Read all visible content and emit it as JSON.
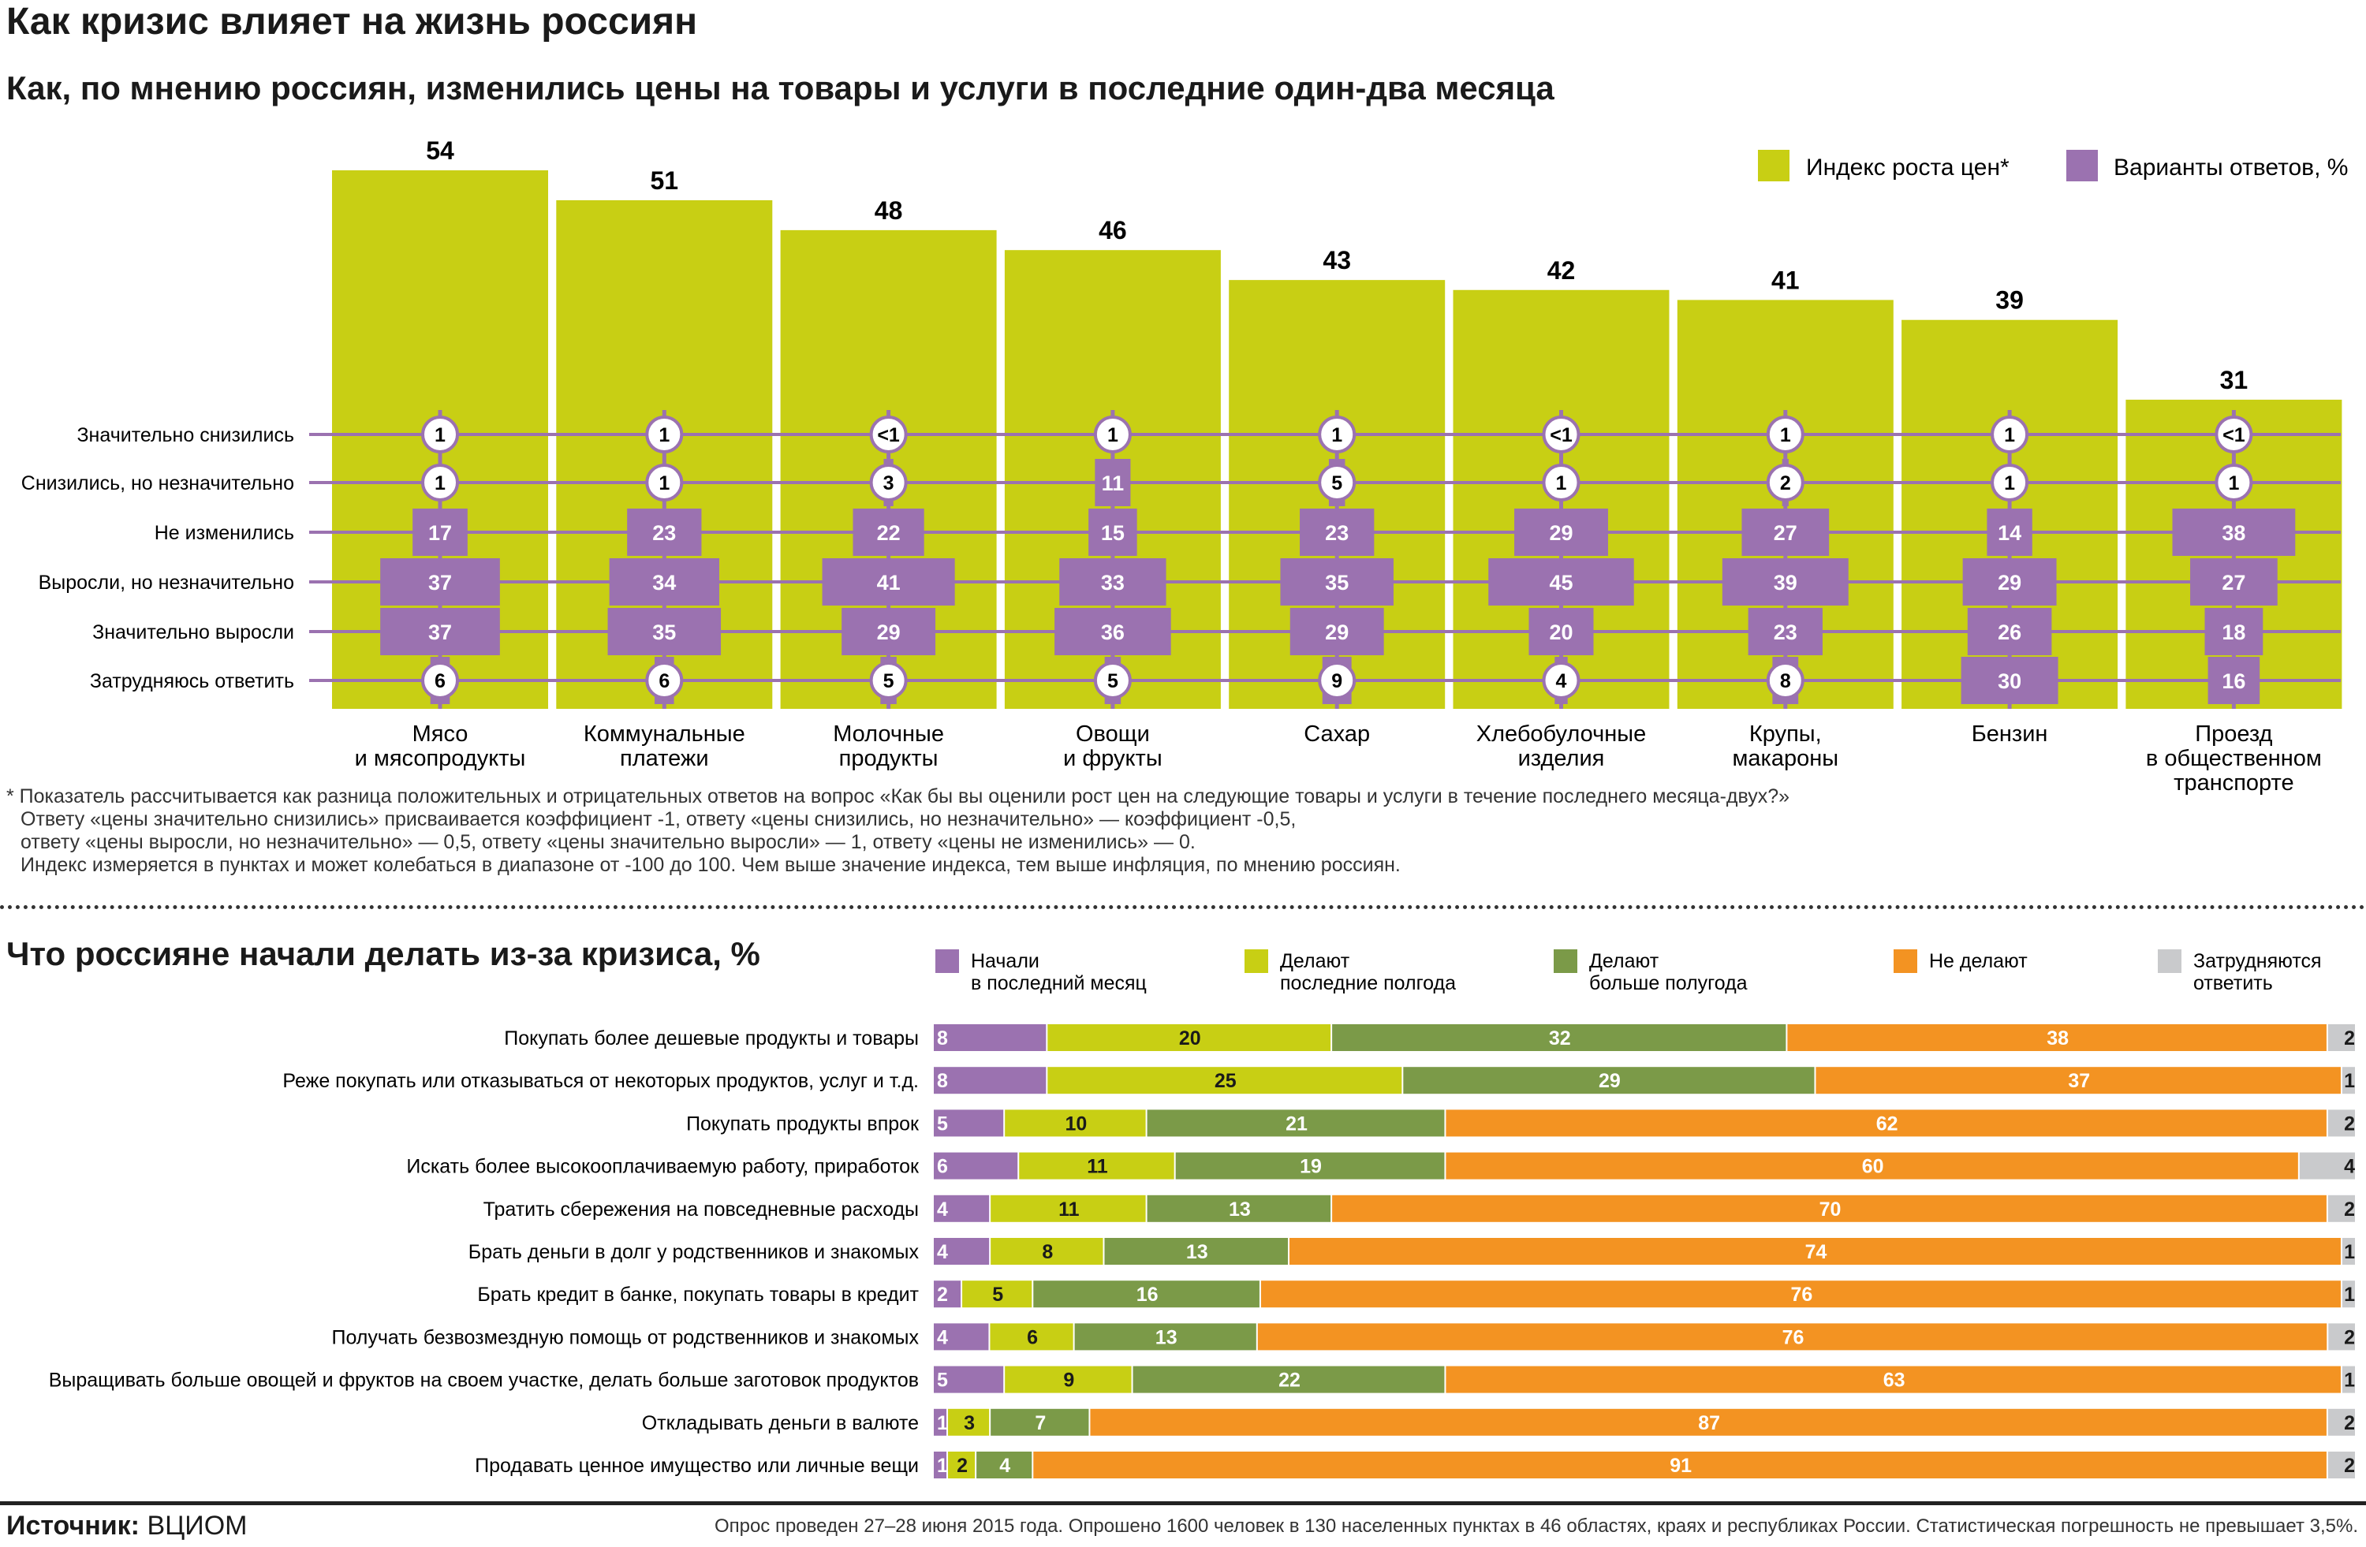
{
  "header": {
    "title": "Как кризис влияет на жизнь россиян",
    "subtitle": "Как, по мнению россиян, изменились цены на товары и услуги в последние один-два месяца"
  },
  "footnote": [
    "* Показатель рассчитывается как разница положительных и отрицательных ответов на вопрос «Как бы вы оценили рост цен на следующие товары и услуги в течение последнего месяца-двух?»",
    "Ответу «цены значительно снизились» присваивается коэффициент -1, ответу «цены снизились, но незначительно» — коэффициент -0,5,",
    "ответу «цены выросли, но незначительно» — 0,5, ответу «цены значительно выросли» — 1, ответу «цены не изменились» — 0.",
    "Индекс измеряется в пунктах и может колебаться в диапазоне от -100 до 100. Чем выше значение индекса, тем выше инфляция, по мнению россиян."
  ],
  "section2_title": "Что россияне начали делать из-за кризиса, %",
  "source": {
    "label": "Источник:",
    "value": "ВЦИОМ"
  },
  "survey_note": "Опрос проведен 27–28 июня 2015 года. Опрошено 1600 человек в 130 населенных пунктах в 46 областях, краях и республиках России. Статистическая погрешность не превышает 3,5%.",
  "colors": {
    "index": "#c8cf14",
    "answers": "#9b72b0",
    "started": "#9b72b0",
    "half_year": "#c8cf14",
    "more_half_year": "#7b9a48",
    "dont": "#f39322",
    "unsure": "#c9cacc"
  },
  "chart_data": [
    {
      "type": "bar",
      "legend": [
        "Индекс роста цен*",
        "Варианты ответов, %"
      ],
      "legend_placement": "top-right",
      "categories": [
        "Мясо\nи мясопродукты",
        "Коммунальные\nплатежи",
        "Молочные\nпродукты",
        "Овощи\nи фрукты",
        "Сахар",
        "Хлебобулочные\nизделия",
        "Крупы,\nмакароны",
        "Бензин",
        "Проезд\nв общественном\nтранспорте"
      ],
      "values": [
        54,
        51,
        48,
        46,
        43,
        42,
        41,
        39,
        31
      ],
      "ylim": [
        0,
        54
      ],
      "answer_rows": [
        {
          "label": "Значительно снизились",
          "values": [
            "1",
            "1",
            "<1",
            "1",
            "1",
            "<1",
            "1",
            "1",
            "<1"
          ]
        },
        {
          "label": "Снизились, но незначительно",
          "values": [
            "1",
            "1",
            "3",
            "11",
            "5",
            "1",
            "2",
            "1",
            "1"
          ]
        },
        {
          "label": "Не изменились",
          "values": [
            "17",
            "23",
            "22",
            "15",
            "23",
            "29",
            "27",
            "14",
            "38"
          ]
        },
        {
          "label": "Выросли, но незначительно",
          "values": [
            "37",
            "34",
            "41",
            "33",
            "35",
            "45",
            "39",
            "29",
            "27"
          ]
        },
        {
          "label": "Значительно выросли",
          "values": [
            "37",
            "35",
            "29",
            "36",
            "29",
            "20",
            "23",
            "26",
            "18"
          ]
        },
        {
          "label": "Затрудняюсь ответить",
          "values": [
            "6",
            "6",
            "5",
            "5",
            "9",
            "4",
            "8",
            "30",
            "16"
          ]
        }
      ]
    },
    {
      "type": "bar",
      "orientation": "horizontal-stacked",
      "legend_placement": "top",
      "series": [
        {
          "name": "Начали\nв последний месяц",
          "values": [
            8,
            8,
            5,
            6,
            4,
            4,
            2,
            4,
            5,
            1,
            1
          ]
        },
        {
          "name": "Делают\nпоследние полгода",
          "values": [
            20,
            25,
            10,
            11,
            11,
            8,
            5,
            6,
            9,
            3,
            2
          ]
        },
        {
          "name": "Делают\nбольше полугода",
          "values": [
            32,
            29,
            21,
            19,
            13,
            13,
            16,
            13,
            22,
            7,
            4
          ]
        },
        {
          "name": "Не делают",
          "values": [
            38,
            37,
            62,
            60,
            70,
            74,
            76,
            76,
            63,
            87,
            91
          ]
        },
        {
          "name": "Затрудняются\nответить",
          "values": [
            2,
            1,
            2,
            4,
            2,
            1,
            1,
            2,
            1,
            2,
            2
          ]
        }
      ],
      "categories": [
        "Покупать более дешевые продукты и товары",
        "Реже покупать или отказываться от некоторых продуктов, услуг и т.д.",
        "Покупать продукты впрок",
        "Искать более высокооплачиваемую работу, приработок",
        "Тратить сбережения на повседневные расходы",
        "Брать деньги в долг у родственников и знакомых",
        "Брать кредит в банке, покупать товары в кредит",
        "Получать безвозмездную помощь от родственников и знакомых",
        "Выращивать больше овощей и фруктов на своем участке, делать больше заготовок продуктов",
        "Откладывать деньги в валюте",
        "Продавать ценное имущество или личные вещи"
      ],
      "xlim": [
        0,
        100
      ]
    }
  ]
}
